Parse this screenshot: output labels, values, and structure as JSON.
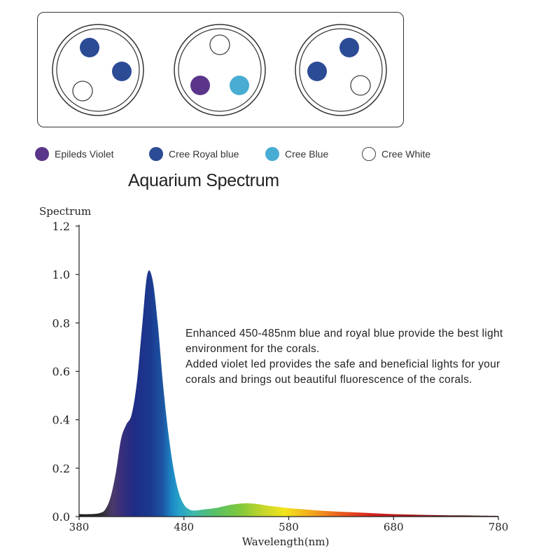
{
  "led_panel": {
    "lenses": [
      {
        "leds": [
          {
            "type": "Cree Royal blue",
            "pos": "top-left"
          },
          {
            "type": "Cree Royal blue",
            "pos": "right"
          },
          {
            "type": "Cree White",
            "pos": "bottom-left"
          }
        ]
      },
      {
        "leds": [
          {
            "type": "Cree White",
            "pos": "top"
          },
          {
            "type": "Epileds Violet",
            "pos": "bottom-left"
          },
          {
            "type": "Cree Blue",
            "pos": "bottom-right"
          }
        ]
      },
      {
        "leds": [
          {
            "type": "Cree Royal blue",
            "pos": "top-right"
          },
          {
            "type": "Cree Royal blue",
            "pos": "left"
          },
          {
            "type": "Cree White",
            "pos": "bottom-right"
          }
        ]
      }
    ]
  },
  "legend": [
    {
      "label": "Epileds Violet",
      "color": "#5b3589"
    },
    {
      "label": "Cree Royal blue",
      "color": "#2c4b95"
    },
    {
      "label": "Cree Blue",
      "color": "#48acd3"
    },
    {
      "label": "Cree White",
      "color": "#ffffff"
    }
  ],
  "annotation": {
    "paragraph1": "Enhanced 450-485nm blue and royal blue provide the best light environment for the corals.",
    "paragraph2": "Added violet led provides the safe and beneficial lights for your corals and brings out beautiful fluorescence of the corals."
  },
  "chart_data": {
    "type": "area",
    "title": "Aquarium Spectrum",
    "xlabel": "Wavelength(nm)",
    "ylabel": "Spectrum",
    "xlim": [
      380,
      780
    ],
    "ylim": [
      0,
      1.2
    ],
    "xticks": [
      "380",
      "480",
      "580",
      "680",
      "780"
    ],
    "yticks": [
      "0.0",
      "0.2",
      "0.4",
      "0.6",
      "0.8",
      "1.0",
      "1.2"
    ],
    "grid": false,
    "x": [
      380,
      390,
      400,
      405,
      410,
      415,
      420,
      425,
      430,
      435,
      440,
      445,
      450,
      455,
      460,
      465,
      470,
      475,
      480,
      485,
      490,
      500,
      510,
      520,
      530,
      540,
      550,
      560,
      570,
      580,
      600,
      620,
      640,
      660,
      680,
      700,
      720,
      740,
      760,
      780
    ],
    "y": [
      0.01,
      0.01,
      0.015,
      0.03,
      0.08,
      0.18,
      0.32,
      0.38,
      0.42,
      0.55,
      0.78,
      1.0,
      0.98,
      0.8,
      0.55,
      0.35,
      0.2,
      0.1,
      0.05,
      0.03,
      0.025,
      0.03,
      0.035,
      0.045,
      0.052,
      0.055,
      0.052,
      0.045,
      0.04,
      0.035,
      0.028,
      0.022,
      0.018,
      0.014,
      0.01,
      0.008,
      0.006,
      0.005,
      0.004,
      0.003
    ]
  }
}
